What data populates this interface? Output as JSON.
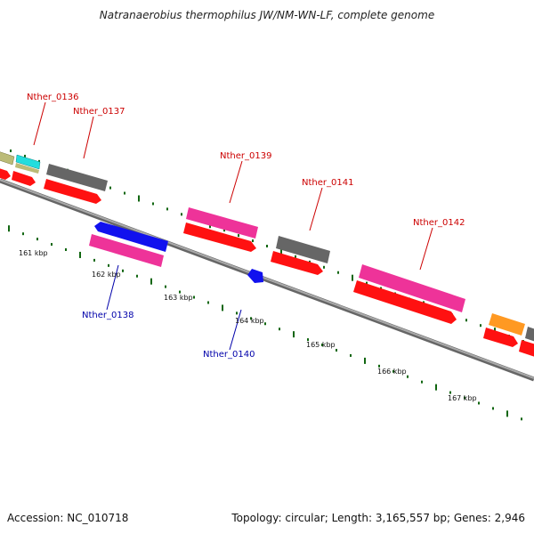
{
  "title": "Natranaerobius thermophilus JW/NM-WN-LF, complete genome",
  "footer": {
    "accession": "Accession: NC_010718",
    "topology": "Topology: circular; Length: 3,165,557 bp; Genes: 2,946"
  },
  "colors": {
    "backbone": "#888888",
    "cds_forward": "#ff1111",
    "pink": "#ee3399",
    "gray": "#666666",
    "khaki": "#bbbb77",
    "cyan": "#22dddd",
    "blue": "#1111ee",
    "orange": "#ff9922",
    "tick": "#116611",
    "label_top": "#cc0000",
    "label_bottom": "#0000aa"
  },
  "gene_labels": [
    {
      "id": "Nther_0136",
      "strand": "forward"
    },
    {
      "id": "Nther_0137",
      "strand": "forward"
    },
    {
      "id": "Nther_0139",
      "strand": "forward"
    },
    {
      "id": "Nther_0141",
      "strand": "forward"
    },
    {
      "id": "Nther_0142",
      "strand": "forward"
    },
    {
      "id": "Nther_0138",
      "strand": "reverse"
    },
    {
      "id": "Nther_0140",
      "strand": "reverse"
    }
  ],
  "scale_labels": [
    "161 kbp",
    "162 kbp",
    "163 kbp",
    "164 kbp",
    "165 kbp",
    "166 kbp",
    "167 kbp"
  ]
}
